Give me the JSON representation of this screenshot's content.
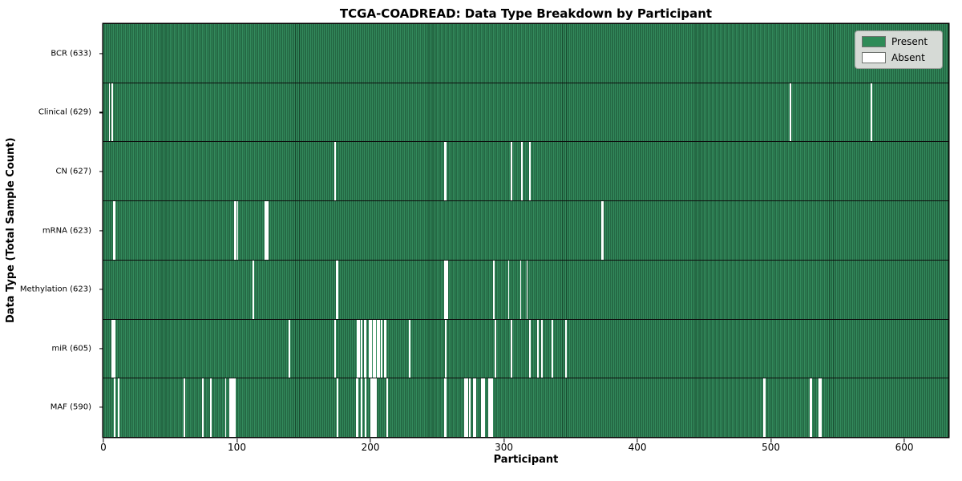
{
  "figure": {
    "title": "TCGA-COADREAD: Data Type Breakdown by Participant",
    "xlabel": "Participant",
    "ylabel": "Data Type (Total Sample Count)"
  },
  "legend": {
    "items": [
      {
        "label": "Present",
        "color": "#2e8b57"
      },
      {
        "label": "Absent",
        "color": "#ffffff"
      }
    ]
  },
  "chart_data": {
    "type": "heatmap",
    "title": "TCGA-COADREAD: Data Type Breakdown by Participant",
    "xlabel": "Participant",
    "ylabel": "Data Type (Total Sample Count)",
    "xlim": [
      0,
      633
    ],
    "n_participants": 633,
    "x_ticks": [
      0,
      100,
      200,
      300,
      400,
      500,
      600
    ],
    "grid": false,
    "legend_position": "upper right",
    "legend_entries": [
      "Present",
      "Absent"
    ],
    "colors": {
      "present_fill": "#338a5c",
      "present_edge": "#17492e",
      "absent": "#ffffff",
      "row_divider": "#0d0d0d",
      "legend_bg": "#d6dad6"
    },
    "rows": [
      {
        "label": "BCR (633)",
        "data_type": "BCR",
        "total_samples": 633,
        "absent_participants": []
      },
      {
        "label": "Clinical (629)",
        "data_type": "Clinical",
        "total_samples": 629,
        "absent_participants": [
          4,
          6,
          514,
          575
        ]
      },
      {
        "label": "CN (627)",
        "data_type": "CN",
        "total_samples": 627,
        "absent_participants": [
          173,
          255,
          256,
          305,
          313,
          319
        ]
      },
      {
        "label": "mRNA (623)",
        "data_type": "mRNA",
        "total_samples": 623,
        "absent_participants": [
          7,
          8,
          98,
          99,
          100,
          121,
          122,
          123,
          373,
          374
        ]
      },
      {
        "label": "Methylation (623)",
        "data_type": "Methylation",
        "total_samples": 623,
        "absent_participants": [
          112,
          174,
          175,
          255,
          256,
          257,
          292,
          303,
          312,
          317
        ]
      },
      {
        "label": "miR (605)",
        "data_type": "miR",
        "total_samples": 605,
        "absent_participants": [
          6,
          7,
          8,
          139,
          173,
          190,
          191,
          193,
          195,
          196,
          199,
          200,
          202,
          203,
          205,
          206,
          208,
          210,
          211,
          229,
          256,
          293,
          305,
          319,
          325,
          328,
          336,
          346
        ]
      },
      {
        "label": "MAF (590)",
        "data_type": "MAF",
        "total_samples": 590,
        "absent_participants": [
          8,
          11,
          60,
          74,
          80,
          91,
          94,
          95,
          96,
          97,
          98,
          175,
          189,
          190,
          193,
          196,
          200,
          201,
          202,
          203,
          204,
          212,
          255,
          256,
          270,
          271,
          272,
          274,
          277,
          278,
          283,
          284,
          285,
          288,
          289,
          290,
          291,
          494,
          495,
          529,
          530,
          536,
          537
        ]
      }
    ]
  }
}
